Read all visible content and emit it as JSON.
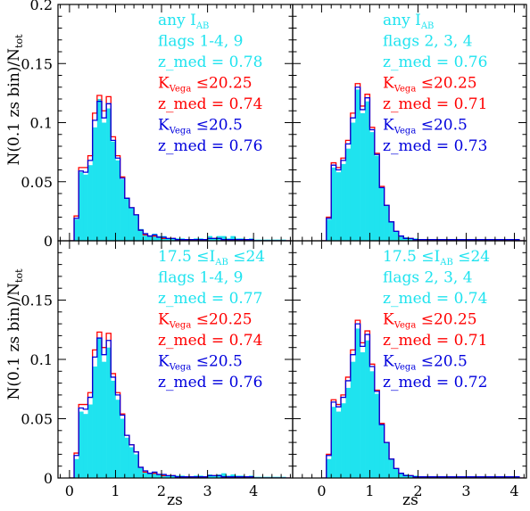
{
  "figure": {
    "ylabel_main": "N(0.1 zs bin)/N",
    "ylabel_sub": "tot",
    "xlabel": "zs"
  },
  "colors": {
    "cyan": "#1fe3ef",
    "red": "#ff0000",
    "blue": "#0000dd",
    "axis": "#000000"
  },
  "chart_data": [
    {
      "type": "bar",
      "panel": "top-left",
      "xlim": [
        -0.25,
        4.85
      ],
      "ylim": [
        0,
        0.2
      ],
      "xticks": [],
      "xticklabels": [],
      "yticks": [
        0,
        0.05,
        0.1,
        0.15,
        0.2
      ],
      "yticklabels": [
        "0",
        "0.05",
        "0.1",
        "0.15",
        "0.2"
      ],
      "bin_width": 0.1,
      "x": [
        0.05,
        0.15,
        0.25,
        0.35,
        0.45,
        0.55,
        0.65,
        0.75,
        0.85,
        0.95,
        1.05,
        1.15,
        1.25,
        1.35,
        1.45,
        1.55,
        1.65,
        1.75,
        1.85,
        1.95,
        2.05,
        2.15,
        2.25,
        2.35,
        2.45,
        2.55,
        2.65,
        2.75,
        2.85,
        2.95,
        3.05,
        3.15,
        3.25,
        3.35,
        3.45,
        3.55,
        3.65,
        3.75,
        3.85,
        3.95,
        4.05,
        4.15,
        4.25,
        4.35,
        4.45,
        4.55,
        4.65,
        4.75
      ],
      "series": [
        {
          "name": "any I_AB, flags 1-4, 9",
          "style": "filled",
          "color": "cyan",
          "values": [
            0,
            0.018,
            0.058,
            0.056,
            0.064,
            0.096,
            0.12,
            0.1,
            0.112,
            0.084,
            0.068,
            0.052,
            0.036,
            0.028,
            0.022,
            0.01,
            0.006,
            0.004,
            0.006,
            0.004,
            0.004,
            0.002,
            0.002,
            0.002,
            0.002,
            0.001,
            0.001,
            0.002,
            0.002,
            0.001,
            0.004,
            0.002,
            0.004,
            0.004,
            0.002,
            0.004,
            0.002,
            0.002,
            0.001,
            0.002,
            0.001,
            0.001,
            0.001,
            0.001,
            0.001,
            0.001,
            0.001,
            0
          ]
        },
        {
          "name": "K_Vega ≤20.25",
          "style": "step",
          "color": "red",
          "values": [
            0,
            0.021,
            0.062,
            0.062,
            0.072,
            0.108,
            0.123,
            0.11,
            0.122,
            0.088,
            0.072,
            0.054,
            0.036,
            0.028,
            0.022,
            0.009,
            0.005,
            0.004,
            0.004,
            0.003,
            0.002,
            0.002,
            0.002,
            0.001,
            0.001,
            0.001,
            0.001,
            0.001,
            0.001,
            0.001,
            0.002,
            0.002,
            0.002,
            0.001,
            0.001,
            0.001,
            0.001,
            0.001,
            0.001,
            0.001,
            0,
            0,
            0,
            0,
            0,
            0,
            0,
            0
          ]
        },
        {
          "name": "K_Vega ≤20.5",
          "style": "step",
          "color": "blue",
          "values": [
            0,
            0.019,
            0.059,
            0.058,
            0.068,
            0.102,
            0.118,
            0.104,
            0.116,
            0.085,
            0.07,
            0.053,
            0.036,
            0.028,
            0.022,
            0.009,
            0.006,
            0.004,
            0.005,
            0.003,
            0.003,
            0.002,
            0.002,
            0.001,
            0.001,
            0.001,
            0.001,
            0.001,
            0.001,
            0.001,
            0.002,
            0.002,
            0.002,
            0.001,
            0.001,
            0.001,
            0.001,
            0.001,
            0.001,
            0.001,
            0,
            0,
            0,
            0,
            0,
            0,
            0,
            0
          ]
        }
      ],
      "annotations": [
        {
          "text": "any I",
          "sub": "AB",
          "tail": "",
          "color": "cyan"
        },
        {
          "text": "flags 1-4, 9",
          "color": "cyan"
        },
        {
          "text": "z_med = 0.78",
          "color": "cyan"
        },
        {
          "text": "K",
          "sub": "Vega",
          "tail": " ≤20.25",
          "color": "red"
        },
        {
          "text": "z_med = 0.74",
          "color": "red"
        },
        {
          "text": "K",
          "sub": "Vega",
          "tail": " ≤20.5",
          "color": "blue"
        },
        {
          "text": "z_med = 0.76",
          "color": "blue"
        }
      ]
    },
    {
      "type": "bar",
      "panel": "top-right",
      "xlim": [
        -0.6,
        4.25
      ],
      "ylim": [
        0,
        0.2
      ],
      "xticks": [],
      "xticklabels": [],
      "yticks": [
        0,
        0.05,
        0.1,
        0.15,
        0.2
      ],
      "yticklabels": [],
      "bin_width": 0.1,
      "x": [
        0.05,
        0.15,
        0.25,
        0.35,
        0.45,
        0.55,
        0.65,
        0.75,
        0.85,
        0.95,
        1.05,
        1.15,
        1.25,
        1.35,
        1.45,
        1.55,
        1.65,
        1.75,
        1.85,
        1.95,
        2.05,
        2.15,
        2.25,
        2.35,
        2.45,
        2.55,
        2.65,
        2.75,
        2.85,
        2.95,
        3.05,
        3.15,
        3.25,
        3.35,
        3.45,
        3.55,
        3.65,
        3.75,
        3.85,
        3.95,
        4.05,
        4.15
      ],
      "series": [
        {
          "name": "any I_AB, flags 2, 3, 4",
          "style": "filled",
          "color": "cyan",
          "values": [
            0,
            0.018,
            0.062,
            0.058,
            0.065,
            0.078,
            0.1,
            0.128,
            0.108,
            0.118,
            0.092,
            0.072,
            0.045,
            0.03,
            0.016,
            0.008,
            0.004,
            0.003,
            0.002,
            0.002,
            0.001,
            0.001,
            0.001,
            0.001,
            0.001,
            0.001,
            0.001,
            0.001,
            0.001,
            0.001,
            0.001,
            0.001,
            0.001,
            0.001,
            0.001,
            0.001,
            0.001,
            0.001,
            0.001,
            0.001,
            0.001,
            0
          ]
        },
        {
          "name": "K_Vega ≤20.25",
          "style": "step",
          "color": "red",
          "values": [
            0,
            0.02,
            0.066,
            0.062,
            0.07,
            0.085,
            0.108,
            0.133,
            0.114,
            0.124,
            0.096,
            0.074,
            0.046,
            0.03,
            0.016,
            0.008,
            0.004,
            0.002,
            0.002,
            0.001,
            0.001,
            0.001,
            0.001,
            0.001,
            0.001,
            0.001,
            0.001,
            0.001,
            0.001,
            0.001,
            0.001,
            0.001,
            0.001,
            0.001,
            0.001,
            0.001,
            0.001,
            0.001,
            0.001,
            0.001,
            0.001,
            0
          ]
        },
        {
          "name": "K_Vega ≤20.5",
          "style": "step",
          "color": "blue",
          "values": [
            0,
            0.019,
            0.064,
            0.06,
            0.068,
            0.082,
            0.104,
            0.13,
            0.111,
            0.121,
            0.094,
            0.073,
            0.045,
            0.03,
            0.016,
            0.008,
            0.004,
            0.002,
            0.002,
            0.001,
            0.001,
            0.001,
            0.001,
            0.001,
            0.001,
            0.001,
            0.001,
            0.001,
            0.001,
            0.001,
            0.001,
            0.001,
            0.001,
            0.001,
            0.001,
            0.001,
            0.001,
            0.001,
            0.001,
            0.001,
            0.001,
            0
          ]
        }
      ],
      "annotations": [
        {
          "text": "any I",
          "sub": "AB",
          "tail": "",
          "color": "cyan"
        },
        {
          "text": "flags 2, 3, 4",
          "color": "cyan"
        },
        {
          "text": "z_med = 0.76",
          "color": "cyan"
        },
        {
          "text": "K",
          "sub": "Vega",
          "tail": " ≤20.25",
          "color": "red"
        },
        {
          "text": "z_med = 0.71",
          "color": "red"
        },
        {
          "text": "K",
          "sub": "Vega",
          "tail": " ≤20.5",
          "color": "blue"
        },
        {
          "text": "z_med = 0.73",
          "color": "blue"
        }
      ]
    },
    {
      "type": "bar",
      "panel": "bottom-left",
      "xlim": [
        -0.25,
        4.85
      ],
      "ylim": [
        0,
        0.2
      ],
      "xticks": [
        0,
        1,
        2,
        3,
        4
      ],
      "xticklabels": [
        "0",
        "1",
        "2",
        "3",
        "4"
      ],
      "yticks": [
        0,
        0.05,
        0.1,
        0.15,
        0.2
      ],
      "yticklabels": [
        "0",
        "0.05",
        "0.1",
        "0.15",
        ""
      ],
      "bin_width": 0.1,
      "x": [
        0.05,
        0.15,
        0.25,
        0.35,
        0.45,
        0.55,
        0.65,
        0.75,
        0.85,
        0.95,
        1.05,
        1.15,
        1.25,
        1.35,
        1.45,
        1.55,
        1.65,
        1.75,
        1.85,
        1.95,
        2.05,
        2.15,
        2.25,
        2.35,
        2.45,
        2.55,
        2.65,
        2.75,
        2.85,
        2.95,
        3.05,
        3.15,
        3.25,
        3.35,
        3.45,
        3.55,
        3.65,
        3.75,
        3.85,
        3.95,
        4.05,
        4.15,
        4.25,
        4.35,
        4.45,
        4.55,
        4.65,
        4.75
      ],
      "series": [
        {
          "name": "17.5 ≤I_AB ≤24, flags 1-4, 9",
          "style": "filled",
          "color": "cyan",
          "values": [
            0,
            0.016,
            0.056,
            0.054,
            0.062,
            0.094,
            0.118,
            0.098,
            0.11,
            0.082,
            0.066,
            0.05,
            0.034,
            0.026,
            0.02,
            0.009,
            0.005,
            0.004,
            0.005,
            0.003,
            0.003,
            0.002,
            0.002,
            0.002,
            0.002,
            0.001,
            0.001,
            0.002,
            0.002,
            0.001,
            0.003,
            0.002,
            0.003,
            0.004,
            0.002,
            0.003,
            0.002,
            0.002,
            0.001,
            0.002,
            0.001,
            0.001,
            0.001,
            0.001,
            0.001,
            0.001,
            0.001,
            0
          ]
        },
        {
          "name": "K_Vega ≤20.25",
          "style": "step",
          "color": "red",
          "values": [
            0,
            0.021,
            0.062,
            0.062,
            0.072,
            0.108,
            0.123,
            0.11,
            0.122,
            0.088,
            0.072,
            0.054,
            0.036,
            0.028,
            0.022,
            0.009,
            0.005,
            0.004,
            0.004,
            0.003,
            0.002,
            0.002,
            0.002,
            0.001,
            0.001,
            0.001,
            0.001,
            0.001,
            0.001,
            0.001,
            0.002,
            0.002,
            0.002,
            0.001,
            0.001,
            0.001,
            0.001,
            0.001,
            0.001,
            0.001,
            0,
            0,
            0,
            0,
            0,
            0,
            0,
            0
          ]
        },
        {
          "name": "K_Vega ≤20.5",
          "style": "step",
          "color": "blue",
          "values": [
            0,
            0.019,
            0.059,
            0.058,
            0.068,
            0.102,
            0.118,
            0.104,
            0.116,
            0.085,
            0.07,
            0.053,
            0.036,
            0.028,
            0.022,
            0.009,
            0.006,
            0.004,
            0.005,
            0.003,
            0.003,
            0.002,
            0.002,
            0.001,
            0.001,
            0.001,
            0.001,
            0.001,
            0.001,
            0.001,
            0.002,
            0.002,
            0.002,
            0.001,
            0.001,
            0.001,
            0.001,
            0.001,
            0.001,
            0.001,
            0,
            0,
            0,
            0,
            0,
            0,
            0,
            0
          ]
        }
      ],
      "annotations": [
        {
          "text": "17.5 ≤I",
          "sub": "AB",
          "tail": " ≤24",
          "color": "cyan"
        },
        {
          "text": "flags 1-4, 9",
          "color": "cyan"
        },
        {
          "text": "z_med = 0.77",
          "color": "cyan"
        },
        {
          "text": "K",
          "sub": "Vega",
          "tail": " ≤20.25",
          "color": "red"
        },
        {
          "text": "z_med = 0.74",
          "color": "red"
        },
        {
          "text": "K",
          "sub": "Vega",
          "tail": " ≤20.5",
          "color": "blue"
        },
        {
          "text": "z_med = 0.76",
          "color": "blue"
        }
      ]
    },
    {
      "type": "bar",
      "panel": "bottom-right",
      "xlim": [
        -0.6,
        4.25
      ],
      "ylim": [
        0,
        0.2
      ],
      "xticks": [
        0,
        1,
        2,
        3,
        4
      ],
      "xticklabels": [
        "0",
        "1",
        "2",
        "3",
        "4"
      ],
      "yticks": [
        0,
        0.05,
        0.1,
        0.15,
        0.2
      ],
      "yticklabels": [],
      "bin_width": 0.1,
      "x": [
        0.05,
        0.15,
        0.25,
        0.35,
        0.45,
        0.55,
        0.65,
        0.75,
        0.85,
        0.95,
        1.05,
        1.15,
        1.25,
        1.35,
        1.45,
        1.55,
        1.65,
        1.75,
        1.85,
        1.95,
        2.05,
        2.15,
        2.25,
        2.35,
        2.45,
        2.55,
        2.65,
        2.75,
        2.85,
        2.95,
        3.05,
        3.15,
        3.25,
        3.35,
        3.45,
        3.55,
        3.65,
        3.75,
        3.85,
        3.95,
        4.05,
        4.15
      ],
      "series": [
        {
          "name": "17.5 ≤I_AB ≤24, flags 2, 3, 4",
          "style": "filled",
          "color": "cyan",
          "values": [
            0,
            0.016,
            0.06,
            0.056,
            0.063,
            0.076,
            0.098,
            0.126,
            0.106,
            0.116,
            0.09,
            0.071,
            0.045,
            0.03,
            0.016,
            0.008,
            0.004,
            0.003,
            0.002,
            0.002,
            0.001,
            0.001,
            0.001,
            0.001,
            0.001,
            0.001,
            0.001,
            0.001,
            0.001,
            0.001,
            0.001,
            0.001,
            0.001,
            0.001,
            0.001,
            0.001,
            0.001,
            0.001,
            0.001,
            0.001,
            0.001,
            0
          ]
        },
        {
          "name": "K_Vega ≤20.25",
          "style": "step",
          "color": "red",
          "values": [
            0,
            0.02,
            0.066,
            0.062,
            0.07,
            0.085,
            0.108,
            0.133,
            0.114,
            0.124,
            0.096,
            0.074,
            0.046,
            0.03,
            0.016,
            0.008,
            0.004,
            0.002,
            0.002,
            0.001,
            0.001,
            0.001,
            0.001,
            0.001,
            0.001,
            0.001,
            0.001,
            0.001,
            0.001,
            0.001,
            0.001,
            0.001,
            0.001,
            0.001,
            0.001,
            0.001,
            0.001,
            0.001,
            0.001,
            0.001,
            0.001,
            0
          ]
        },
        {
          "name": "K_Vega ≤20.5",
          "style": "step",
          "color": "blue",
          "values": [
            0,
            0.019,
            0.064,
            0.06,
            0.068,
            0.082,
            0.104,
            0.13,
            0.111,
            0.121,
            0.094,
            0.073,
            0.045,
            0.03,
            0.016,
            0.008,
            0.004,
            0.002,
            0.002,
            0.001,
            0.001,
            0.001,
            0.001,
            0.001,
            0.001,
            0.001,
            0.001,
            0.001,
            0.001,
            0.001,
            0.001,
            0.001,
            0.001,
            0.001,
            0.001,
            0.001,
            0.001,
            0.001,
            0.001,
            0.001,
            0.001,
            0
          ]
        }
      ],
      "annotations": [
        {
          "text": "17.5 ≤I",
          "sub": "AB",
          "tail": " ≤24",
          "color": "cyan"
        },
        {
          "text": "flags 2, 3, 4",
          "color": "cyan"
        },
        {
          "text": "z_med = 0.74",
          "color": "cyan"
        },
        {
          "text": "K",
          "sub": "Vega",
          "tail": " ≤20.25",
          "color": "red"
        },
        {
          "text": "z_med = 0.71",
          "color": "red"
        },
        {
          "text": "K",
          "sub": "Vega",
          "tail": " ≤20.5",
          "color": "blue"
        },
        {
          "text": "z_med = 0.72",
          "color": "blue"
        }
      ]
    }
  ]
}
